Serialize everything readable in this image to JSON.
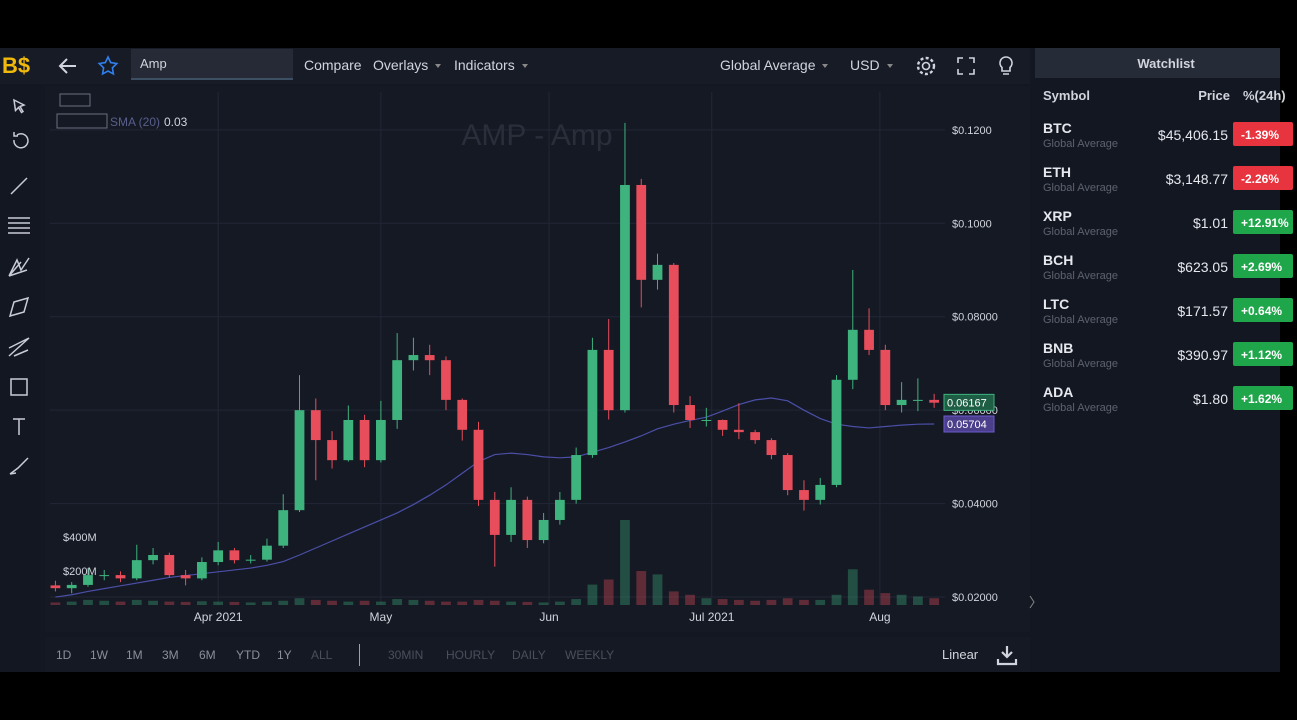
{
  "toolbar": {
    "logo": "B$",
    "search": "Amp",
    "compare": "Compare",
    "overlays": "Overlays",
    "indicators": "Indicators",
    "source": "Global Average",
    "currency": "USD"
  },
  "chart_data": {
    "type": "candlestick",
    "title": "AMP - Amp",
    "indicator": {
      "label": "SMA (20)",
      "value": 0.03
    },
    "x": [
      2,
      5,
      8,
      11,
      14,
      17,
      20,
      23,
      26,
      29,
      32,
      35,
      38,
      41,
      44,
      47,
      50,
      53,
      56,
      59,
      62,
      65,
      68,
      71,
      74,
      77,
      80,
      83,
      86,
      89,
      92,
      95,
      98,
      101,
      104,
      107,
      110,
      113,
      116,
      119,
      122,
      125,
      128,
      131,
      134,
      137,
      140,
      143,
      146,
      149,
      152,
      155,
      158,
      161,
      164
    ],
    "open": [
      0.0225,
      0.0219,
      0.0226,
      0.0247,
      0.0247,
      0.024,
      0.0279,
      0.029,
      0.0247,
      0.024,
      0.0275,
      0.03,
      0.0279,
      0.028,
      0.031,
      0.0386,
      0.06,
      0.0536,
      0.0493,
      0.0579,
      0.0493,
      0.0579,
      0.0707,
      0.0718,
      0.0707,
      0.0622,
      0.0558,
      0.0408,
      0.0333,
      0.0408,
      0.0322,
      0.0365,
      0.0408,
      0.0504,
      0.0729,
      0.06,
      0.1082,
      0.0879,
      0.0911,
      0.0611,
      0.0579,
      0.0579,
      0.0558,
      0.0553,
      0.0536,
      0.0504,
      0.0429,
      0.0408,
      0.044,
      0.0665,
      0.0772,
      0.0729,
      0.0611,
      0.0622,
      0.0622
    ],
    "high": [
      0.0235,
      0.0232,
      0.0262,
      0.0258,
      0.0255,
      0.0312,
      0.0305,
      0.0295,
      0.0258,
      0.0285,
      0.0318,
      0.0305,
      0.029,
      0.0325,
      0.042,
      0.0675,
      0.0625,
      0.0555,
      0.061,
      0.059,
      0.062,
      0.0765,
      0.0755,
      0.074,
      0.0715,
      0.0625,
      0.0575,
      0.0425,
      0.0435,
      0.0415,
      0.038,
      0.0425,
      0.052,
      0.0755,
      0.0795,
      0.1215,
      0.1095,
      0.0935,
      0.0915,
      0.063,
      0.0605,
      0.058,
      0.0615,
      0.0558,
      0.054,
      0.0508,
      0.045,
      0.0455,
      0.0675,
      0.09,
      0.0818,
      0.074,
      0.066,
      0.0668,
      0.0635
    ],
    "low": [
      0.0212,
      0.0208,
      0.0222,
      0.0236,
      0.0232,
      0.0236,
      0.027,
      0.0242,
      0.0225,
      0.0236,
      0.0268,
      0.0272,
      0.0272,
      0.0276,
      0.0305,
      0.0382,
      0.045,
      0.0475,
      0.049,
      0.0478,
      0.0488,
      0.056,
      0.0685,
      0.0675,
      0.06,
      0.0535,
      0.0395,
      0.0265,
      0.0318,
      0.0305,
      0.0315,
      0.0355,
      0.04,
      0.0498,
      0.058,
      0.0595,
      0.082,
      0.0858,
      0.0595,
      0.0562,
      0.0565,
      0.0545,
      0.0538,
      0.0528,
      0.0495,
      0.0418,
      0.0385,
      0.0398,
      0.0435,
      0.0645,
      0.0718,
      0.06,
      0.0595,
      0.0598,
      0.0605
    ],
    "close": [
      0.0219,
      0.0226,
      0.0247,
      0.0247,
      0.024,
      0.0279,
      0.029,
      0.0247,
      0.024,
      0.0275,
      0.03,
      0.0279,
      0.028,
      0.031,
      0.0386,
      0.06,
      0.0536,
      0.0493,
      0.0579,
      0.0493,
      0.0579,
      0.0707,
      0.0718,
      0.0707,
      0.0622,
      0.0558,
      0.0408,
      0.0333,
      0.0408,
      0.0322,
      0.0365,
      0.0408,
      0.0504,
      0.0729,
      0.06,
      0.1082,
      0.0879,
      0.0911,
      0.0611,
      0.0579,
      0.0579,
      0.0558,
      0.0553,
      0.0536,
      0.0504,
      0.0429,
      0.0408,
      0.044,
      0.0665,
      0.0772,
      0.0729,
      0.0611,
      0.0622,
      0.0622,
      0.0616
    ],
    "volume": [
      15,
      20,
      30,
      25,
      20,
      30,
      25,
      20,
      18,
      22,
      20,
      18,
      15,
      20,
      25,
      40,
      30,
      25,
      20,
      25,
      20,
      35,
      30,
      25,
      20,
      20,
      30,
      25,
      20,
      18,
      15,
      20,
      35,
      120,
      150,
      500,
      200,
      180,
      80,
      60,
      40,
      35,
      30,
      25,
      30,
      40,
      30,
      30,
      60,
      210,
      90,
      70,
      60,
      50,
      40
    ],
    "sma": {
      "name": "SMA (20)",
      "color": "#4b4fa8",
      "values": [
        0.02,
        0.0205,
        0.0212,
        0.0218,
        0.0224,
        0.023,
        0.0236,
        0.0242,
        0.0246,
        0.025,
        0.0254,
        0.0258,
        0.0262,
        0.0268,
        0.0276,
        0.029,
        0.0305,
        0.032,
        0.0335,
        0.035,
        0.0365,
        0.038,
        0.0398,
        0.0418,
        0.044,
        0.0465,
        0.049,
        0.0505,
        0.0508,
        0.0505,
        0.05,
        0.0498,
        0.05,
        0.051,
        0.052,
        0.0532,
        0.0545,
        0.056,
        0.057,
        0.0578,
        0.0585,
        0.0598,
        0.0612,
        0.0622,
        0.0626,
        0.062,
        0.06,
        0.0582,
        0.057,
        0.0565,
        0.0562,
        0.0565,
        0.0568,
        0.057,
        0.05704
      ]
    },
    "up_color": "#3fb37e",
    "down_color": "#e84d5b",
    "last_price": 0.06167,
    "sma_last": 0.05704,
    "xlim": [
      1,
      166
    ],
    "xticks": [
      {
        "value": 32,
        "label": "Apr 2021"
      },
      {
        "value": 62,
        "label": "May"
      },
      {
        "value": 93,
        "label": "Jun"
      },
      {
        "value": 123,
        "label": "Jul 2021"
      },
      {
        "value": 154,
        "label": "Aug"
      }
    ],
    "ylim": [
      0.0183,
      0.1281
    ],
    "yticks": [
      {
        "value": 0.12,
        "label": "$0.1200"
      },
      {
        "value": 0.1,
        "label": "$0.1000"
      },
      {
        "value": 0.08,
        "label": "$0.08000"
      },
      {
        "value": 0.06,
        "label": "$0.06000"
      },
      {
        "value": 0.04,
        "label": "$0.04000"
      },
      {
        "value": 0.02,
        "label": "$0.02000"
      }
    ],
    "volume_ylim": [
      0,
      3018
    ],
    "volume_ticks": [
      {
        "value": 200,
        "label": "$200M"
      },
      {
        "value": 400,
        "label": "$400M"
      }
    ],
    "grid": true
  },
  "bottom_bar": {
    "ranges": [
      "1D",
      "1W",
      "1M",
      "3M",
      "6M",
      "YTD",
      "1Y",
      "ALL"
    ],
    "intervals": [
      "30MIN",
      "HOURLY",
      "DAILY",
      "WEEKLY"
    ],
    "scale": "Linear"
  },
  "watchlist": {
    "title": "Watchlist",
    "columns": [
      "Symbol",
      "Price",
      "%(24h)"
    ],
    "rows": [
      {
        "symbol": "BTC",
        "source": "Global Average",
        "price": "$45,406.15",
        "change": "-1.39%"
      },
      {
        "symbol": "ETH",
        "source": "Global Average",
        "price": "$3,148.77",
        "change": "-2.26%"
      },
      {
        "symbol": "XRP",
        "source": "Global Average",
        "price": "$1.01",
        "change": "+12.91%"
      },
      {
        "symbol": "BCH",
        "source": "Global Average",
        "price": "$623.05",
        "change": "+2.69%"
      },
      {
        "symbol": "LTC",
        "source": "Global Average",
        "price": "$171.57",
        "change": "+0.64%"
      },
      {
        "symbol": "BNB",
        "source": "Global Average",
        "price": "$390.97",
        "change": "+1.12%"
      },
      {
        "symbol": "ADA",
        "source": "Global Average",
        "price": "$1.80",
        "change": "+1.62%"
      }
    ]
  }
}
